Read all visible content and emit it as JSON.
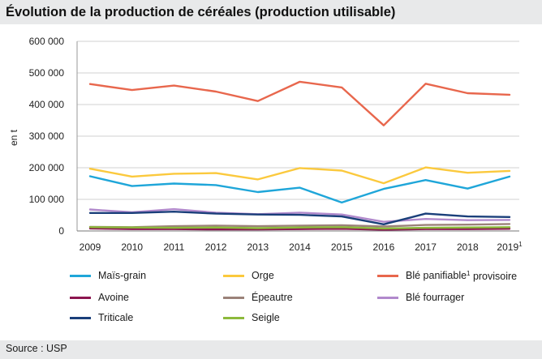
{
  "title": "Évolution de la production de céréales (production utilisable)",
  "source": "Source : USP",
  "footnote": {
    "marker": "1",
    "text": "provisoire"
  },
  "chart_data": {
    "type": "line",
    "title": "Évolution de la production de céréales (production utilisable)",
    "xlabel": "",
    "ylabel": "en t",
    "ylim": [
      0,
      600000
    ],
    "yticks": [
      0,
      100000,
      200000,
      300000,
      400000,
      500000,
      600000
    ],
    "ytick_labels": [
      "0",
      "100 000",
      "200 000",
      "300 000",
      "400 000",
      "500 000",
      "600 000"
    ],
    "categories": [
      "2009",
      "2010",
      "2011",
      "2012",
      "2013",
      "2014",
      "2015",
      "2016",
      "2017",
      "2018",
      "2019"
    ],
    "category_superscripts": [
      "",
      "",
      "",
      "",
      "",
      "",
      "",
      "",
      "",
      "",
      "1"
    ],
    "grid": true,
    "series": [
      {
        "name": "Maïs-grain",
        "color": "#1fa6d9",
        "values": [
          173000,
          142000,
          150000,
          145000,
          123000,
          137000,
          90000,
          133000,
          161000,
          134000,
          172000
        ]
      },
      {
        "name": "Orge",
        "color": "#fbc93d",
        "values": [
          197000,
          172000,
          181000,
          183000,
          163000,
          199000,
          191000,
          151000,
          201000,
          184000,
          190000
        ]
      },
      {
        "name": "Blé panifiable",
        "color": "#e8674d",
        "values": [
          465000,
          446000,
          460000,
          441000,
          411000,
          472000,
          454000,
          334000,
          466000,
          436000,
          431000
        ]
      },
      {
        "name": "Avoine",
        "color": "#8c1650",
        "values": [
          8000,
          6000,
          6000,
          5000,
          5000,
          6000,
          7000,
          4000,
          6000,
          6000,
          7000
        ]
      },
      {
        "name": "Épeautre",
        "color": "#9b8279",
        "values": [
          13000,
          12000,
          15000,
          17000,
          15000,
          17000,
          18000,
          14000,
          19000,
          20000,
          22000
        ]
      },
      {
        "name": "Blé fourrager",
        "color": "#b189cc",
        "values": [
          68000,
          59000,
          69000,
          58000,
          53000,
          58000,
          52000,
          29000,
          38000,
          34000,
          35000
        ]
      },
      {
        "name": "Triticale",
        "color": "#1a3f7a",
        "values": [
          57000,
          57000,
          61000,
          55000,
          52000,
          51000,
          46000,
          21000,
          55000,
          46000,
          44000
        ]
      },
      {
        "name": "Seigle",
        "color": "#8dba3c",
        "values": [
          12000,
          11000,
          10000,
          11000,
          9000,
          11000,
          12000,
          8000,
          10000,
          11000,
          12000
        ]
      }
    ]
  }
}
